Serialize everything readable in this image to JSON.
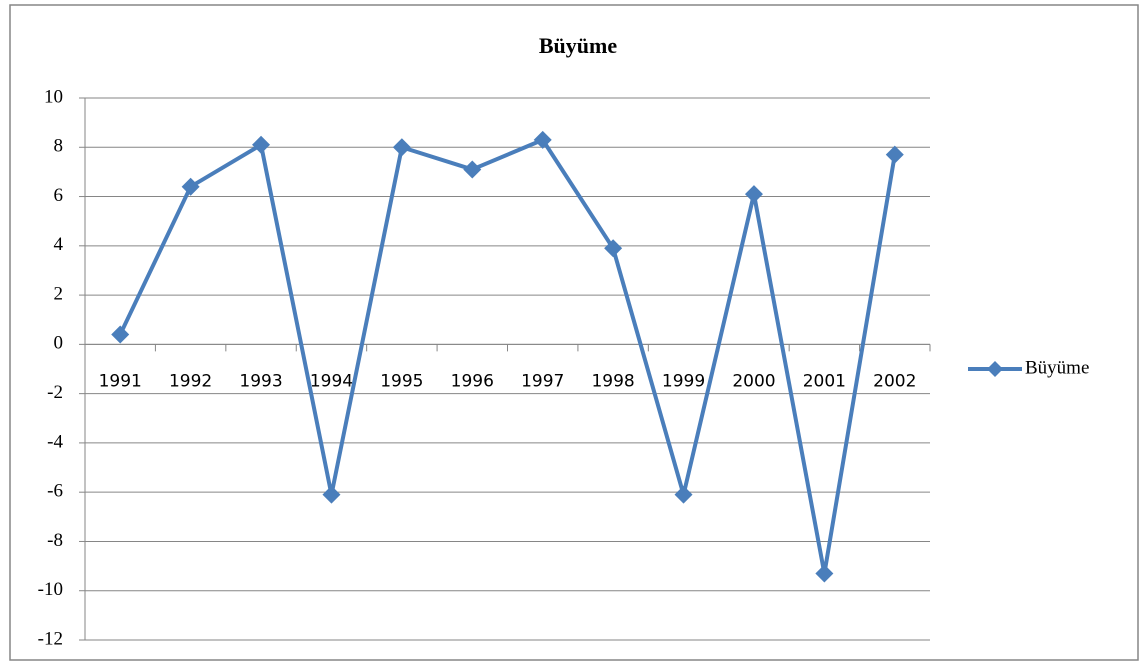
{
  "chart_data": {
    "type": "line",
    "title": "Büyüme",
    "categories": [
      "1991",
      "1992",
      "1993",
      "1994",
      "1995",
      "1996",
      "1997",
      "1998",
      "1999",
      "2000",
      "2001",
      "2002"
    ],
    "series": [
      {
        "name": "Büyüme",
        "color": "#4a7ebb",
        "values": [
          0.4,
          6.4,
          8.1,
          -6.1,
          8.0,
          7.1,
          8.3,
          3.9,
          -6.1,
          6.1,
          -9.3,
          7.7
        ]
      }
    ],
    "ylim": [
      -12,
      10
    ],
    "yticks": [
      -12,
      -10,
      -8,
      -6,
      -4,
      -2,
      0,
      2,
      4,
      6,
      8,
      10
    ],
    "grid": true,
    "legend": "right"
  }
}
